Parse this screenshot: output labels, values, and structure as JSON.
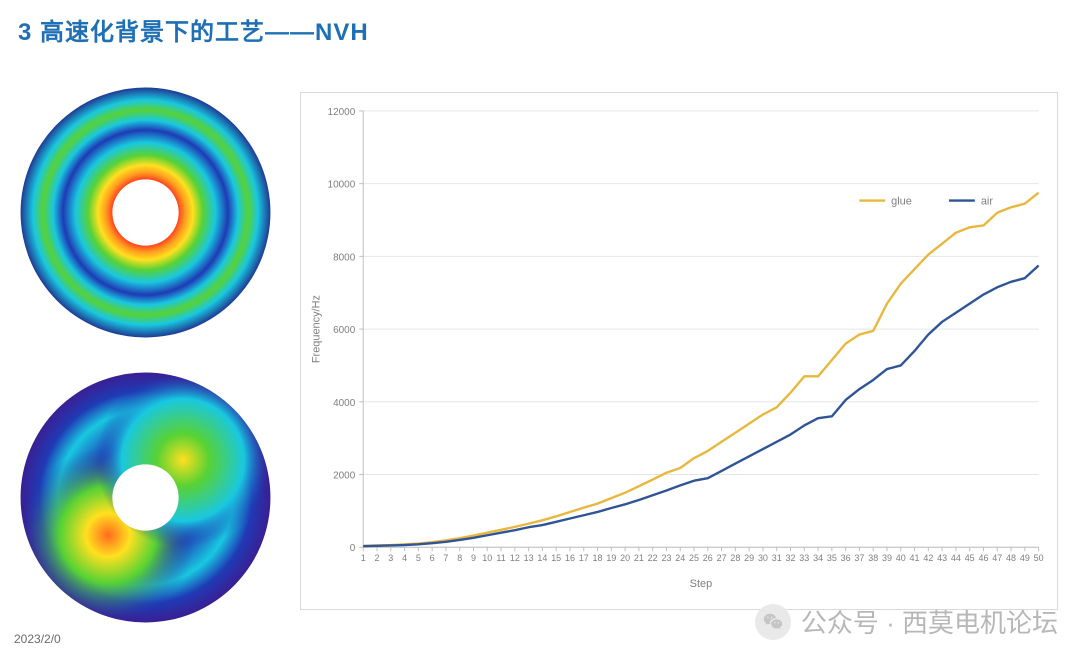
{
  "title": {
    "text": "3 高速化背景下的工艺——NVH",
    "color": "#1f6fb5",
    "fontsize": 24,
    "weight": 700
  },
  "date_fragment": "2023/2/0",
  "chart": {
    "type": "line",
    "plot_bg": "#ffffff",
    "border_color": "#d9d9d9",
    "grid_color": "#e6e6e6",
    "axis_tick_color": "#bfbfbf",
    "tick_font_color": "#7f7f7f",
    "tick_fontsize": 10,
    "ylabel": "Frequency/Hz",
    "ylabel_fontsize": 11,
    "ylabel_color": "#7f7f7f",
    "xlabel": "Step",
    "xlabel_fontsize": 11,
    "xlabel_color": "#7f7f7f",
    "ylim": [
      0,
      12000
    ],
    "ytick_step": 2000,
    "xticks": [
      1,
      2,
      3,
      4,
      5,
      6,
      7,
      8,
      9,
      10,
      11,
      12,
      13,
      14,
      15,
      16,
      17,
      18,
      19,
      20,
      21,
      22,
      23,
      24,
      25,
      26,
      27,
      28,
      29,
      30,
      31,
      32,
      33,
      34,
      35,
      36,
      37,
      38,
      39,
      40,
      41,
      42,
      43,
      44,
      45,
      46,
      47,
      48,
      49,
      50
    ],
    "legend": {
      "position": "top-right-inside",
      "fontsize": 11,
      "text_color": "#7f7f7f",
      "line_length": 26,
      "items": [
        {
          "label": "glue",
          "color": "#e8b83e"
        },
        {
          "label": "air",
          "color": "#2f5597"
        }
      ]
    },
    "series": [
      {
        "name": "glue",
        "color": "#e8b83e",
        "line_width": 2.4,
        "x": [
          1,
          2,
          3,
          4,
          5,
          6,
          7,
          8,
          9,
          10,
          11,
          12,
          13,
          14,
          15,
          16,
          17,
          18,
          19,
          20,
          21,
          22,
          23,
          24,
          25,
          26,
          27,
          28,
          29,
          30,
          31,
          32,
          33,
          34,
          35,
          36,
          37,
          38,
          39,
          40,
          41,
          42,
          43,
          44,
          45,
          46,
          47,
          48,
          49,
          50
        ],
        "y": [
          40,
          50,
          60,
          80,
          100,
          140,
          190,
          250,
          320,
          400,
          480,
          560,
          650,
          740,
          850,
          970,
          1090,
          1200,
          1350,
          1500,
          1680,
          1860,
          2050,
          2180,
          2450,
          2650,
          2900,
          3150,
          3400,
          3650,
          3850,
          4250,
          4700,
          4700,
          5150,
          5600,
          5850,
          5950,
          6700,
          7250,
          7650,
          8050,
          8350,
          8650,
          8800,
          8850,
          9200,
          9350,
          9450,
          9750
        ]
      },
      {
        "name": "air",
        "color": "#2f5597",
        "line_width": 2.4,
        "x": [
          1,
          2,
          3,
          4,
          5,
          6,
          7,
          8,
          9,
          10,
          11,
          12,
          13,
          14,
          15,
          16,
          17,
          18,
          19,
          20,
          21,
          22,
          23,
          24,
          25,
          26,
          27,
          28,
          29,
          30,
          31,
          32,
          33,
          34,
          35,
          36,
          37,
          38,
          39,
          40,
          41,
          42,
          43,
          44,
          45,
          46,
          47,
          48,
          49,
          50
        ],
        "y": [
          30,
          40,
          50,
          60,
          80,
          110,
          150,
          200,
          260,
          330,
          400,
          470,
          550,
          610,
          700,
          790,
          880,
          970,
          1080,
          1180,
          1300,
          1430,
          1560,
          1700,
          1830,
          1900,
          2100,
          2300,
          2500,
          2700,
          2900,
          3100,
          3350,
          3550,
          3600,
          4050,
          4350,
          4600,
          4900,
          5000,
          5400,
          5850,
          6200,
          6450,
          6700,
          6950,
          7150,
          7300,
          7400,
          7750
        ]
      }
    ]
  },
  "simulations": {
    "ring_outer_color": "#1f3a93",
    "ring_colors_comment": "radial rainbow gradient blue->cyan->green->yellow->orange->red from rim inward"
  },
  "watermark": {
    "icon_name": "wechat-icon",
    "text": "公众号 · 西莫电机论坛",
    "color": "#b7b7b7",
    "fontsize": 26
  }
}
